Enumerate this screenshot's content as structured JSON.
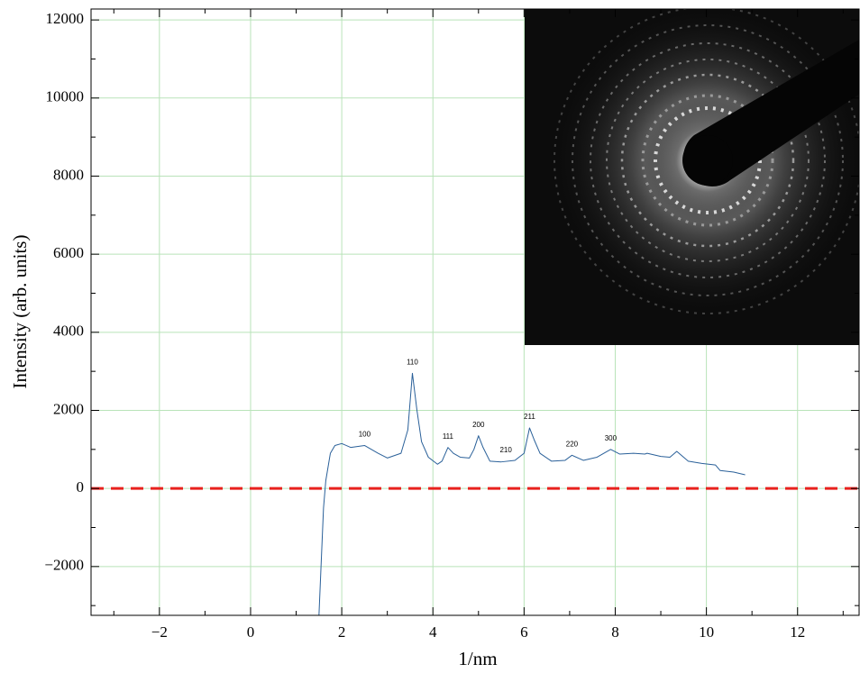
{
  "chart_data": {
    "type": "line",
    "xlabel": "1/nm",
    "ylabel": "Intensity (arb. units)",
    "xlim": [
      -3.5,
      13.35
    ],
    "ylim": [
      -3250,
      12280
    ],
    "xticks": [
      {
        "value": -2,
        "label": "−2"
      },
      0,
      2,
      4,
      6,
      8,
      10,
      12
    ],
    "yticks": [
      {
        "value": -2000,
        "label": "−2000"
      },
      0,
      2000,
      4000,
      6000,
      8000,
      10000,
      12000
    ],
    "xminorticks": [
      -3,
      -1,
      1,
      3,
      5,
      7,
      9,
      11,
      13
    ],
    "yminorticks": [
      -3000,
      -1000,
      1000,
      3000,
      5000,
      7000,
      9000,
      11000
    ],
    "grid": true,
    "grid_color": "#b9e3b9",
    "series": [
      {
        "color": "#2a6099",
        "x": [
          1.5,
          1.6,
          1.65,
          1.75,
          1.85,
          2.0,
          2.2,
          2.5,
          2.8,
          3.0,
          3.3,
          3.45,
          3.55,
          3.65,
          3.75,
          3.9,
          4.1,
          4.2,
          4.33,
          4.45,
          4.6,
          4.8,
          4.9,
          5.0,
          5.1,
          5.25,
          5.5,
          5.8,
          6.0,
          6.12,
          6.22,
          6.35,
          6.6,
          6.9,
          7.05,
          7.3,
          7.6,
          7.9,
          8.1,
          8.4,
          8.65,
          8.7,
          9.0,
          9.2,
          9.35,
          9.6,
          9.9,
          10.2,
          10.3,
          10.6,
          10.85
        ],
        "values": [
          -3250,
          -500,
          200,
          900,
          1100,
          1150,
          1050,
          1100,
          900,
          780,
          900,
          1500,
          2950,
          2000,
          1200,
          800,
          620,
          700,
          1050,
          900,
          800,
          780,
          1000,
          1350,
          1050,
          700,
          680,
          720,
          900,
          1550,
          1250,
          900,
          700,
          720,
          850,
          720,
          800,
          1000,
          880,
          900,
          880,
          900,
          820,
          800,
          950,
          700,
          640,
          600,
          460,
          420,
          350
        ]
      }
    ],
    "hline": {
      "value": 0,
      "color": "#e8211d"
    },
    "annotations": [
      {
        "text": "100",
        "x": 2.5
      },
      {
        "text": "110",
        "x": 3.55
      },
      {
        "text": "111",
        "x": 4.33
      },
      {
        "text": "200",
        "x": 5.0
      },
      {
        "text": "210",
        "x": 5.6
      },
      {
        "text": "211",
        "x": 6.12
      },
      {
        "text": "220",
        "x": 7.05
      },
      {
        "text": "300",
        "x": 7.9
      }
    ]
  }
}
